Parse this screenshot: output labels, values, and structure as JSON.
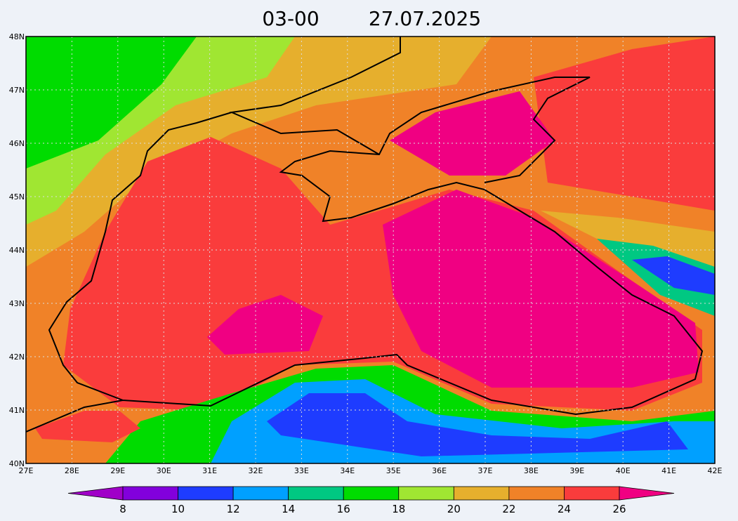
{
  "title": {
    "time": "03-00",
    "date": "27.07.2025"
  },
  "map": {
    "lat_ticks": [
      "48N",
      "47N",
      "46N",
      "45N",
      "44N",
      "43N",
      "42N",
      "41N",
      "40N"
    ],
    "lon_ticks": [
      "27E",
      "28E",
      "29E",
      "30E",
      "31E",
      "32E",
      "33E",
      "34E",
      "35E",
      "36E",
      "37E",
      "38E",
      "39E",
      "40E",
      "41E",
      "42E"
    ]
  },
  "colorbar": {
    "ticks": [
      8,
      10,
      12,
      14,
      16,
      18,
      20,
      22,
      24,
      26
    ],
    "colors": [
      "#a000c8",
      "#8200dc",
      "#1e3cff",
      "#00a0ff",
      "#00c882",
      "#00dc00",
      "#a0e632",
      "#e6af2d",
      "#f08228",
      "#fa3c3c",
      "#f00082"
    ]
  }
}
